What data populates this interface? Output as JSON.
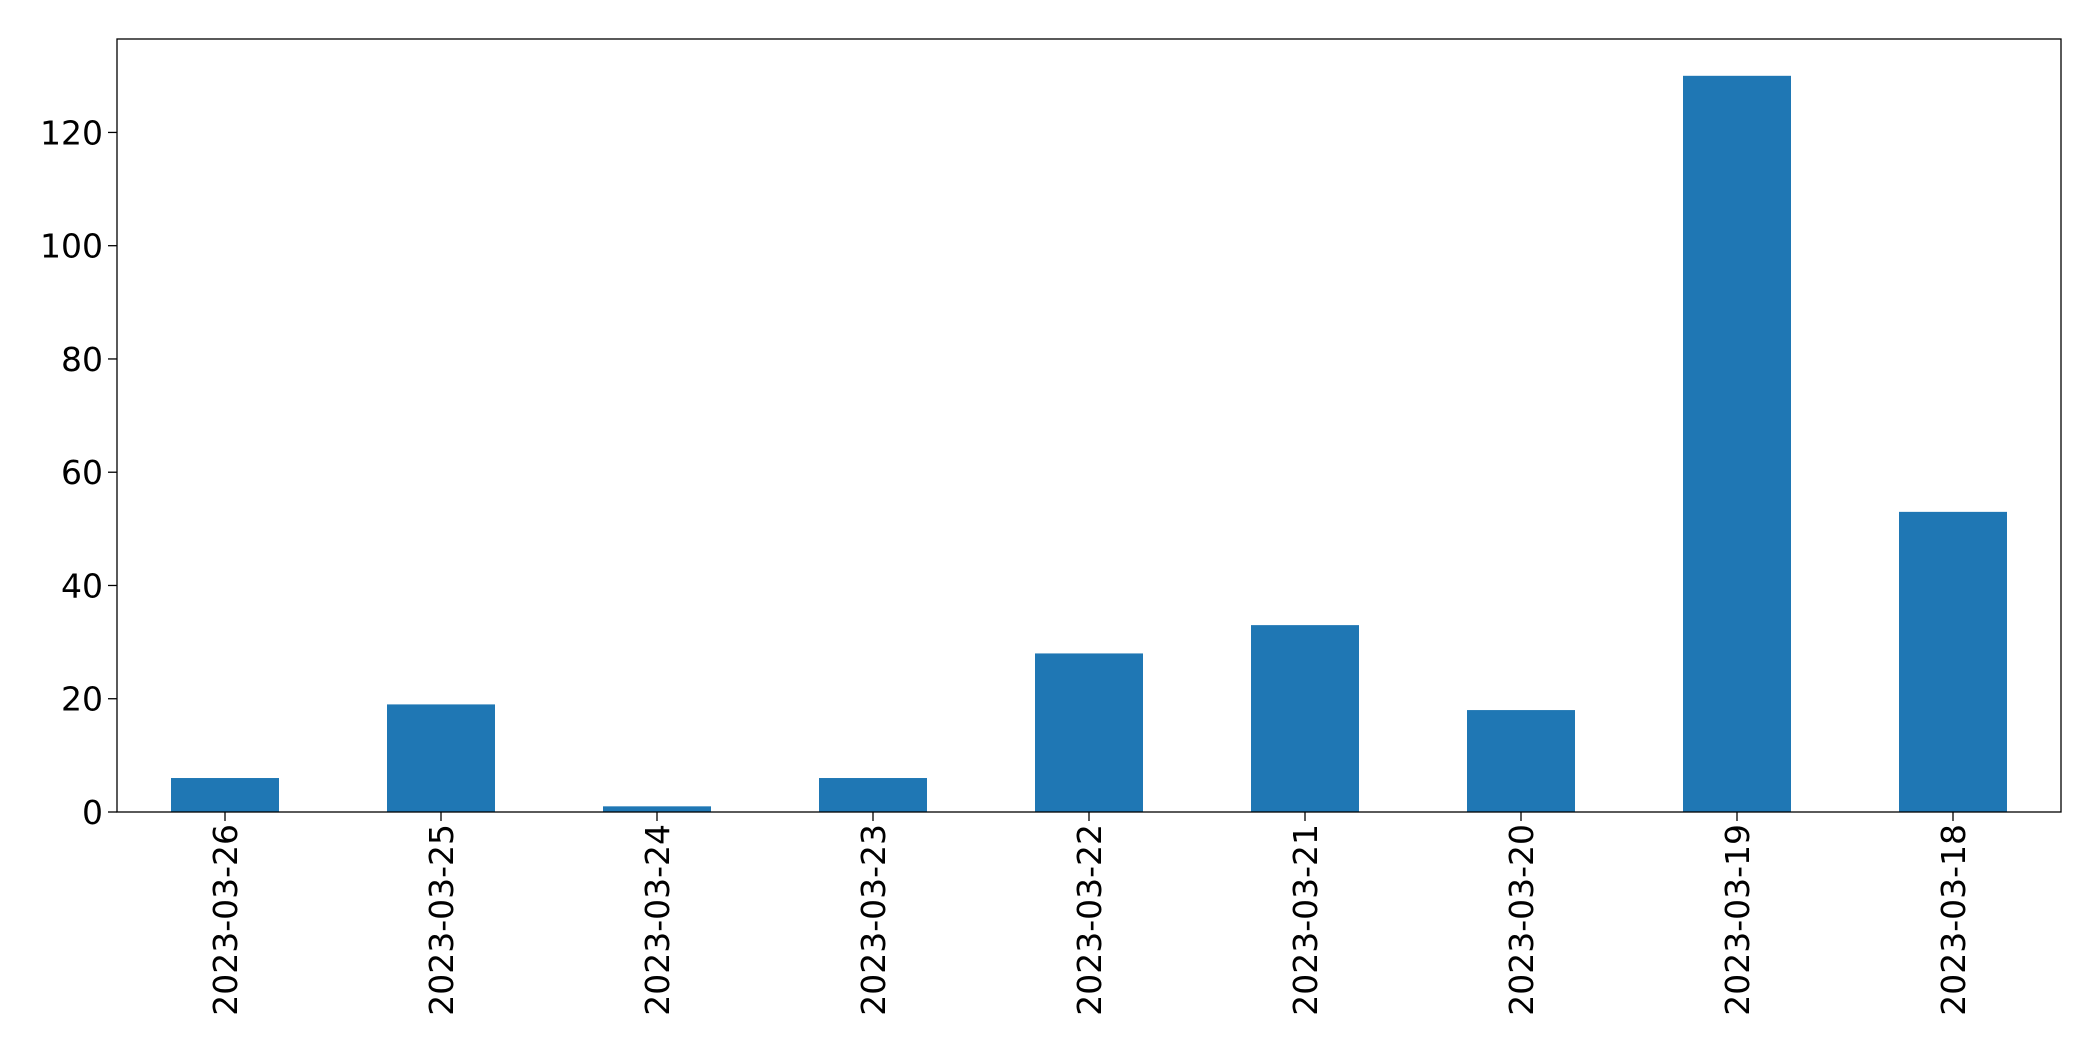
{
  "chart_data": {
    "type": "bar",
    "categories": [
      "2023-03-26",
      "2023-03-25",
      "2023-03-24",
      "2023-03-23",
      "2023-03-22",
      "2023-03-21",
      "2023-03-20",
      "2023-03-19",
      "2023-03-18"
    ],
    "values": [
      6,
      19,
      1,
      6,
      28,
      33,
      18,
      130,
      53
    ],
    "ylim": [
      0,
      136.5
    ],
    "yticks": [
      0,
      20,
      40,
      60,
      80,
      100,
      120
    ],
    "bar_color": "#1f77b4",
    "grid": false,
    "legend": "none",
    "title": "",
    "xlabel": "",
    "ylabel": ""
  }
}
